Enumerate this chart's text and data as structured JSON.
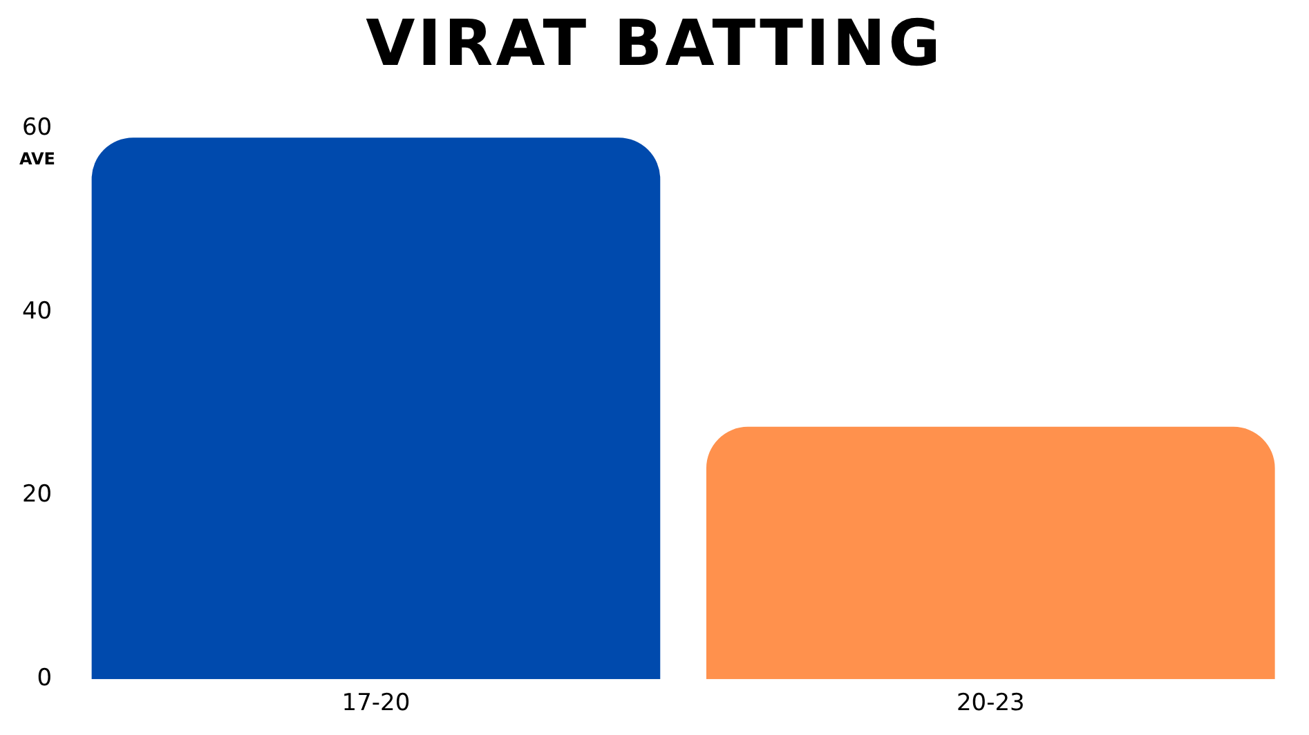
{
  "chart_data": {
    "type": "bar",
    "title": "VIRAT BATTING",
    "ylabel": "AVE",
    "categories": [
      "17-20",
      "20-23"
    ],
    "values": [
      59,
      27.5
    ],
    "colors": [
      "#004aad",
      "#ff914d"
    ],
    "ylim": [
      0,
      60
    ],
    "yticks": [
      0,
      20,
      40,
      60
    ],
    "grid": false,
    "legend": false
  }
}
